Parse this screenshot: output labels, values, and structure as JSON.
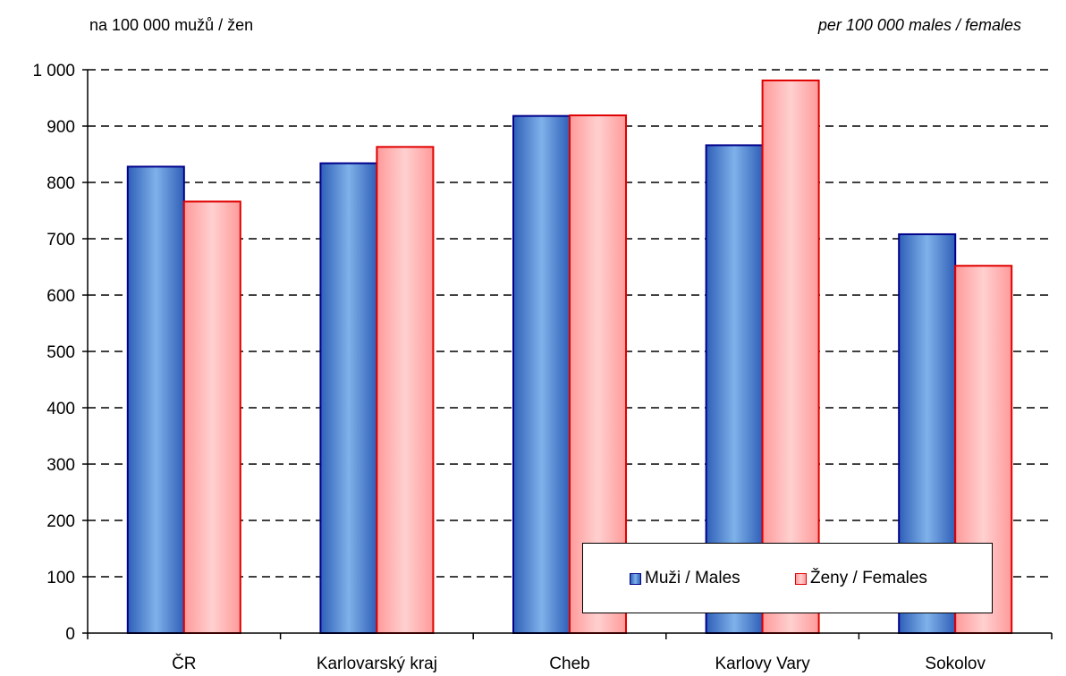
{
  "chart_data": {
    "type": "bar",
    "unit_label_left": "na 100 000 mužů / žen",
    "unit_label_right": "per 100 000 males / females",
    "categories": [
      "ČR",
      "Karlovarský kraj",
      "Cheb",
      "Karlovy Vary",
      "Sokolov"
    ],
    "series": [
      {
        "name": "Muži / Males",
        "values": [
          828,
          834,
          918,
          866,
          708
        ],
        "color": "#5b9bd5"
      },
      {
        "name": "Ženy / Females",
        "values": [
          766,
          863,
          919,
          981,
          652
        ],
        "color": "#ffaaaa"
      }
    ],
    "ylim": [
      0,
      1000
    ],
    "yticks": [
      0,
      100,
      200,
      300,
      400,
      500,
      600,
      700,
      800,
      900,
      1000
    ],
    "ytick_labels": [
      "0",
      "100",
      "200",
      "300",
      "400",
      "500",
      "600",
      "700",
      "800",
      "900",
      "1 000"
    ],
    "grid": true,
    "legend_position": "bottom-right"
  }
}
